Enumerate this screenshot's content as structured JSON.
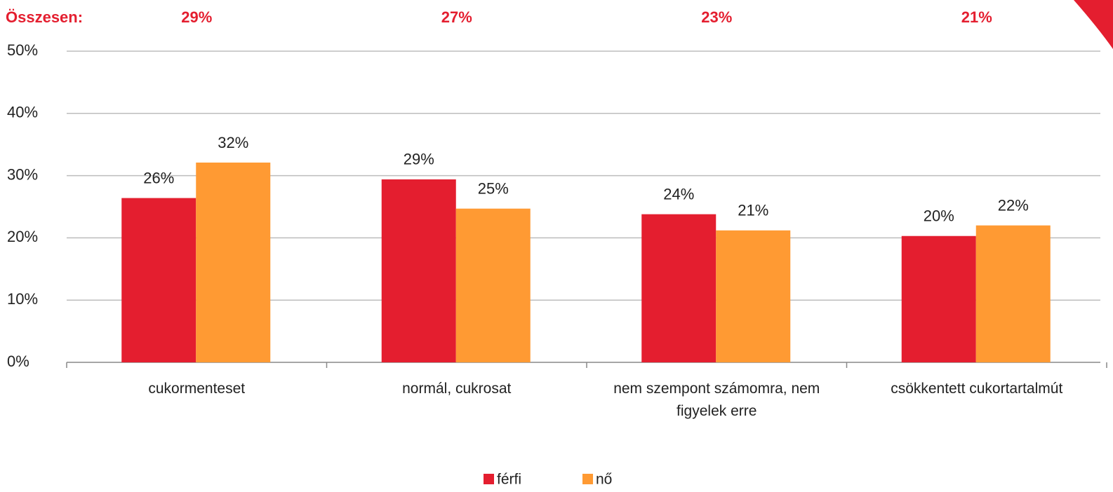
{
  "chart_data": {
    "type": "bar",
    "totals_title": "Összesen:",
    "totals": [
      "29%",
      "27%",
      "23%",
      "21%"
    ],
    "categories": [
      "cukormenteset",
      "normál, cukrosat",
      "nem szempont számomra, nem figyelek erre",
      "csökkentett cukortartalmút"
    ],
    "series": [
      {
        "name": "férfi",
        "color": "#e41e2f",
        "values": [
          26.4,
          29.4,
          23.8,
          20.3
        ],
        "value_labels": [
          "26%",
          "29%",
          "24%",
          "20%"
        ]
      },
      {
        "name": "nő",
        "color": "#ff9a33",
        "values": [
          32.1,
          24.7,
          21.2,
          22.0
        ],
        "value_labels": [
          "32%",
          "25%",
          "21%",
          "22%"
        ]
      }
    ],
    "ylim": [
      0,
      50
    ],
    "yticks": [
      {
        "value": 0,
        "label": "0%"
      },
      {
        "value": 10,
        "label": "10%"
      },
      {
        "value": 20,
        "label": "20%"
      },
      {
        "value": 30,
        "label": "30%"
      },
      {
        "value": 40,
        "label": "40%"
      },
      {
        "value": 50,
        "label": "50%"
      }
    ],
    "grid": true,
    "legend": "bottom"
  }
}
